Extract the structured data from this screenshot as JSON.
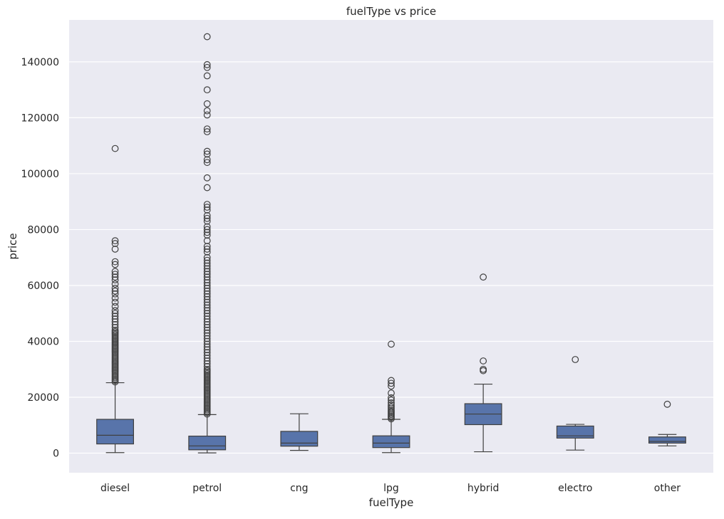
{
  "chart_data": {
    "type": "box",
    "title": "fuelType vs price",
    "xlabel": "fuelType",
    "ylabel": "price",
    "ylim": [
      -7000,
      155000
    ],
    "yticks": [
      0,
      20000,
      40000,
      60000,
      80000,
      100000,
      120000,
      140000
    ],
    "ytick_labels": [
      "0",
      "20000",
      "40000",
      "60000",
      "80000",
      "100000",
      "120000",
      "140000"
    ],
    "grid": true,
    "colors": {
      "box_fill": "#5874aa",
      "lines": "#404040",
      "plot_bg": "#eaeaf2",
      "grid": "#ffffff"
    },
    "categories": [
      "diesel",
      "petrol",
      "cng",
      "lpg",
      "hybrid",
      "electro",
      "other"
    ],
    "boxes": [
      {
        "category": "diesel",
        "whisker_low": 200,
        "q1": 3300,
        "median": 6400,
        "q3": 12100,
        "whisker_high": 25200,
        "outliers": [
          25500,
          26000,
          26500,
          27000,
          27500,
          28000,
          28500,
          29000,
          29500,
          30000,
          30500,
          31000,
          31500,
          32000,
          32500,
          33000,
          33500,
          34000,
          34500,
          35000,
          35500,
          36000,
          36500,
          37000,
          37500,
          38000,
          38500,
          39000,
          39500,
          40000,
          40500,
          41000,
          41500,
          42000,
          42500,
          43000,
          43500,
          44000,
          45000,
          46000,
          47000,
          48000,
          49000,
          50000,
          51000,
          52500,
          54000,
          55500,
          57000,
          58000,
          59000,
          60500,
          62000,
          63000,
          64000,
          65000,
          67500,
          68500,
          73000,
          75000,
          76000,
          109000
        ]
      },
      {
        "category": "petrol",
        "whisker_low": 100,
        "q1": 1200,
        "median": 2600,
        "q3": 6100,
        "whisker_high": 13800,
        "outliers": [
          14000,
          14500,
          15000,
          15500,
          16000,
          16500,
          17000,
          17500,
          18000,
          18500,
          19000,
          19500,
          20000,
          20500,
          21000,
          21500,
          22000,
          22500,
          23000,
          23500,
          24000,
          24500,
          25000,
          25500,
          26000,
          26500,
          27000,
          27500,
          28000,
          28500,
          29000,
          29500,
          30000,
          31000,
          32000,
          33000,
          34000,
          35000,
          36000,
          37000,
          38000,
          39000,
          40000,
          41000,
          42000,
          43000,
          44000,
          45000,
          46000,
          47000,
          48000,
          49000,
          50000,
          51000,
          52000,
          53000,
          54000,
          55000,
          56000,
          57000,
          58000,
          59000,
          60000,
          61000,
          62000,
          63000,
          64000,
          65000,
          66000,
          67000,
          68000,
          69000,
          70000,
          72000,
          73000,
          74000,
          76000,
          78000,
          79000,
          80000,
          81000,
          83000,
          84000,
          85000,
          87000,
          88000,
          89000,
          95000,
          98500,
          104000,
          105000,
          107000,
          108000,
          115000,
          116000,
          121000,
          122500,
          125000,
          130000,
          135000,
          138000,
          139000,
          149000
        ]
      },
      {
        "category": "cng",
        "whisker_low": 1000,
        "q1": 2500,
        "median": 3600,
        "q3": 7800,
        "whisker_high": 14100,
        "outliers": []
      },
      {
        "category": "lpg",
        "whisker_low": 200,
        "q1": 2000,
        "median": 3600,
        "q3": 6200,
        "whisker_high": 12100,
        "outliers": [
          12300,
          12800,
          13300,
          13800,
          14300,
          14800,
          15300,
          15900,
          16500,
          17200,
          18000,
          19000,
          19800,
          21500,
          24000,
          25000,
          26000,
          39000
        ]
      },
      {
        "category": "hybrid",
        "whisker_low": 500,
        "q1": 10200,
        "median": 14000,
        "q3": 17700,
        "whisker_high": 24700,
        "outliers": [
          29500,
          30000,
          33000,
          63000
        ]
      },
      {
        "category": "electro",
        "whisker_low": 1100,
        "q1": 5400,
        "median": 6200,
        "q3": 9700,
        "whisker_high": 10300,
        "outliers": [
          33500
        ]
      },
      {
        "category": "other",
        "whisker_low": 2600,
        "q1": 3600,
        "median": 4200,
        "q3": 5800,
        "whisker_high": 6700,
        "outliers": [
          17500
        ]
      }
    ]
  }
}
